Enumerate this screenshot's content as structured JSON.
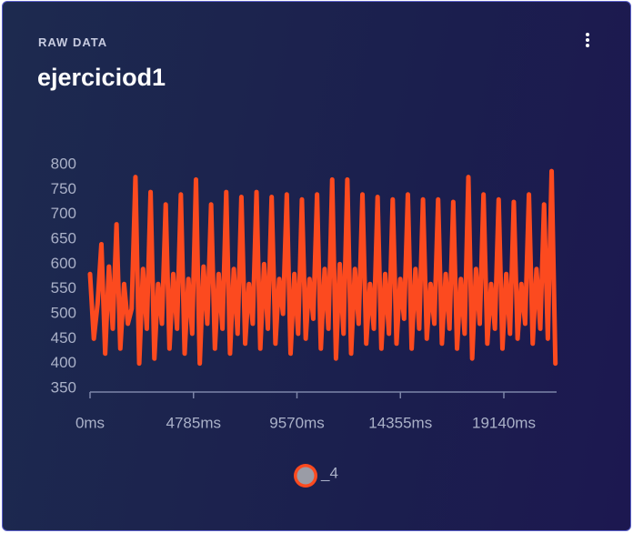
{
  "chart_data": {
    "type": "line",
    "subtitle": "RAW DATA",
    "title": "ejerciciod1",
    "x": [
      0,
      175,
      350,
      525,
      700,
      875,
      1050,
      1225,
      1400,
      1575,
      1750,
      1925,
      2100,
      2275,
      2450,
      2625,
      2800,
      2975,
      3150,
      3325,
      3500,
      3675,
      3850,
      4025,
      4200,
      4375,
      4550,
      4725,
      4900,
      5075,
      5250,
      5425,
      5600,
      5775,
      5950,
      6125,
      6300,
      6475,
      6650,
      6825,
      7000,
      7175,
      7350,
      7525,
      7700,
      7875,
      8050,
      8225,
      8400,
      8575,
      8750,
      8925,
      9100,
      9275,
      9450,
      9625,
      9800,
      9975,
      10150,
      10325,
      10500,
      10675,
      10850,
      11025,
      11200,
      11375,
      11550,
      11725,
      11900,
      12075,
      12250,
      12425,
      12600,
      12775,
      12950,
      13125,
      13300,
      13475,
      13650,
      13825,
      14000,
      14175,
      14350,
      14525,
      14700,
      14875,
      15050,
      15225,
      15400,
      15575,
      15750,
      15925,
      16100,
      16275,
      16450,
      16625,
      16800,
      16975,
      17150,
      17325,
      17500,
      17675,
      17850,
      18025,
      18200,
      18375,
      18550,
      18725,
      18900,
      19075,
      19250,
      19425,
      19600,
      19775,
      19950,
      20125,
      20300,
      20475,
      20650,
      20825,
      21000,
      21175,
      21350,
      21525
    ],
    "series": [
      {
        "name": "_4",
        "color": "#fc4a1f",
        "values": [
          580,
          450,
          520,
          640,
          420,
          595,
          470,
          680,
          430,
          560,
          480,
          510,
          775,
          400,
          590,
          470,
          745,
          410,
          560,
          480,
          720,
          430,
          580,
          470,
          740,
          420,
          570,
          460,
          770,
          400,
          595,
          480,
          720,
          430,
          580,
          470,
          745,
          420,
          590,
          460,
          735,
          440,
          560,
          480,
          745,
          430,
          600,
          470,
          735,
          440,
          570,
          500,
          740,
          420,
          580,
          460,
          730,
          450,
          570,
          490,
          740,
          430,
          590,
          470,
          770,
          410,
          600,
          460,
          770,
          420,
          590,
          480,
          740,
          440,
          560,
          470,
          735,
          430,
          580,
          460,
          730,
          440,
          570,
          490,
          740,
          430,
          590,
          470,
          730,
          450,
          560,
          480,
          730,
          440,
          580,
          470,
          725,
          430,
          570,
          460,
          775,
          410,
          590,
          480,
          740,
          440,
          560,
          470,
          730,
          430,
          580,
          460,
          725,
          450,
          560,
          480,
          740,
          440,
          590,
          470,
          720,
          450,
          787,
          400
        ]
      }
    ],
    "xlim": [
      0,
      21580
    ],
    "xticks": [
      {
        "value": 0,
        "label": "0ms"
      },
      {
        "value": 4785,
        "label": "4785ms"
      },
      {
        "value": 9570,
        "label": "9570ms"
      },
      {
        "value": 14355,
        "label": "14355ms"
      },
      {
        "value": 19140,
        "label": "19140ms"
      }
    ],
    "ylim": [
      350,
      800
    ],
    "yticks": [
      350,
      400,
      450,
      500,
      550,
      600,
      650,
      700,
      750,
      800
    ]
  }
}
